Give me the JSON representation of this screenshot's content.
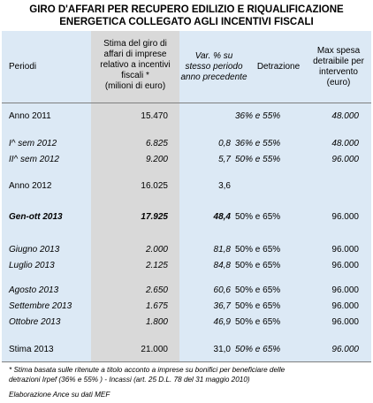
{
  "title_line1": "GIRO D'AFFARI   PER RECUPERO EDILIZIO E RIQUALIFICAZIONE",
  "title_line2": "ENERGETICA COLLEGATO AGLI INCENTIVI FISCALI",
  "headers": {
    "periodi": "Periodi",
    "stima": [
      "Stima del giro di",
      "affari di imprese",
      "relativo a incentivi",
      "fiscali *",
      "(milioni di euro)"
    ],
    "var": [
      "Var. % su",
      "stesso periodo",
      "anno precedente"
    ],
    "detrazione": "Detrazione",
    "max": [
      "Max spesa",
      "detraibile per",
      "intervento",
      "(euro)"
    ]
  },
  "rows": [
    {
      "label": "Anno 2011",
      "value": "15.470",
      "var": "",
      "detrazione": "36% e 55%",
      "max": "48.000"
    },
    {
      "label": "I^ sem 2012",
      "value": "6.825",
      "var": "0,8",
      "detrazione": "36% e 55%",
      "max": "48.000"
    },
    {
      "label": "II^ sem 2012",
      "value": "9.200",
      "var": "5,7",
      "detrazione": "50% e 55%",
      "max": "96.000"
    },
    {
      "label": "Anno 2012",
      "value": "16.025",
      "var": "3,6",
      "detrazione": "",
      "max": ""
    },
    {
      "label": "Gen-ott 2013",
      "value": "17.925",
      "var": "48,4",
      "detrazione": "50% e 65%",
      "max": "96.000"
    },
    {
      "label": "Giugno 2013",
      "value": "2.000",
      "var": "81,8",
      "detrazione": "50% e 65%",
      "max": "96.000"
    },
    {
      "label": "Luglio 2013",
      "value": "2.125",
      "var": "84,8",
      "detrazione": "50% e 65%",
      "max": "96.000"
    },
    {
      "label": "Agosto 2013",
      "value": "2.650",
      "var": "60,6",
      "detrazione": "50% e 65%",
      "max": "96.000"
    },
    {
      "label": "Settembre 2013",
      "value": "1.675",
      "var": "36,7",
      "detrazione": "50% e 65%",
      "max": "96.000"
    },
    {
      "label": "Ottobre 2013",
      "value": "1.800",
      "var": "46,9",
      "detrazione": "50% e 65%",
      "max": "96.000"
    },
    {
      "label": "Stima 2013",
      "value": "21.000",
      "var": "31,0",
      "detrazione": "50% e 65%",
      "max": "96.000"
    }
  ],
  "footnote_line1": "* Stima basata sulle ritenute a titolo acconto a imprese  su bonifici  per beneficiare delle",
  "footnote_line2": "detrazioni Irpef (36% e 55% ) - Incassi (art. 25 D.L. 78 del 31 maggio 2010)",
  "source": "Elaborazione Ance su dati  MEF"
}
